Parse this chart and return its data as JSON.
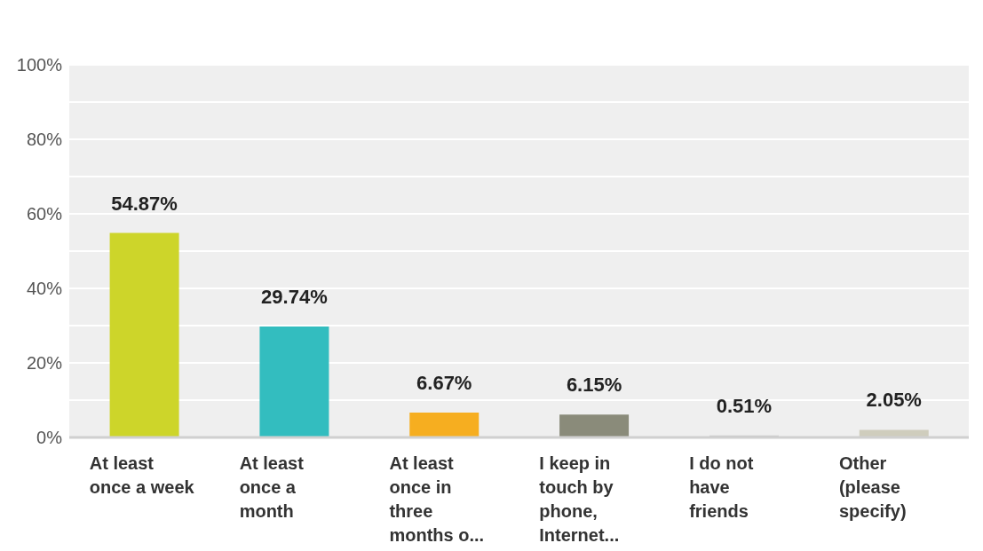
{
  "chart_data": {
    "type": "bar",
    "categories": [
      "At least once a week",
      "At least once a month",
      "At least once in three months o...",
      "I keep in touch by phone, Internet...",
      "I do not have friends",
      "Other (please specify)"
    ],
    "values": [
      54.87,
      29.74,
      6.67,
      6.15,
      0.51,
      2.05
    ],
    "value_labels": [
      "54.87%",
      "29.74%",
      "6.67%",
      "6.15%",
      "0.51%",
      "2.05%"
    ],
    "colors": [
      "#cdd52a",
      "#33bdbf",
      "#f6ae20",
      "#8a8b7a",
      "#c9c9c9",
      "#cfcdbd"
    ],
    "ylim": [
      0,
      100
    ],
    "yticks": [
      {
        "value": 0,
        "label": "0%"
      },
      {
        "value": 10,
        "label": null
      },
      {
        "value": 20,
        "label": "20%"
      },
      {
        "value": 30,
        "label": null
      },
      {
        "value": 40,
        "label": "40%"
      },
      {
        "value": 50,
        "label": null
      },
      {
        "value": 60,
        "label": "60%"
      },
      {
        "value": 70,
        "label": null
      },
      {
        "value": 80,
        "label": "80%"
      },
      {
        "value": 90,
        "label": null
      },
      {
        "value": 100,
        "label": "100%"
      }
    ],
    "grid": "y"
  }
}
